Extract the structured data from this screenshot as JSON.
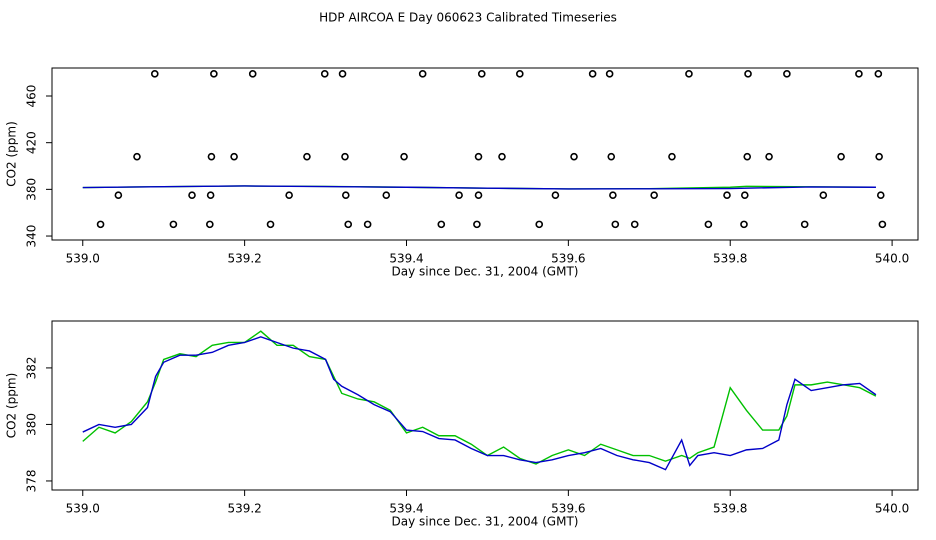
{
  "title": "HDP AIRCOA E  Day 060623  Calibrated Timeseries",
  "chart_data": [
    {
      "type": "line",
      "xlabel": "Day since Dec. 31, 2004 (GMT)",
      "ylabel": "CO2 (ppm)",
      "xlim": [
        538.962,
        540.032
      ],
      "ylim": [
        336.6,
        484
      ],
      "xticks": [
        {
          "value": 539,
          "label": "539.0"
        },
        539.2,
        539.4,
        539.6,
        539.8,
        {
          "value": 540,
          "label": "540.0"
        }
      ],
      "yticks": [
        340,
        380,
        420,
        460
      ],
      "series": [
        {
          "style": "points",
          "color": "#000000",
          "x": [
            539.089,
            539.162,
            539.21,
            539.299,
            539.321,
            539.42,
            539.493,
            539.54,
            539.63,
            539.651,
            539.749,
            539.822,
            539.87,
            539.959,
            539.983,
            539.067,
            539.159,
            539.187,
            539.277,
            539.324,
            539.397,
            539.489,
            539.518,
            539.607,
            539.653,
            539.728,
            539.821,
            539.848,
            539.937,
            539.984,
            539.044,
            539.135,
            539.158,
            539.255,
            539.325,
            539.375,
            539.465,
            539.489,
            539.584,
            539.655,
            539.706,
            539.796,
            539.818,
            539.915,
            539.986,
            539.022,
            539.112,
            539.157,
            539.232,
            539.328,
            539.352,
            539.443,
            539.487,
            539.564,
            539.658,
            539.682,
            539.773,
            539.817,
            539.892,
            539.988
          ],
          "values": [
            479,
            479,
            479,
            479,
            479,
            479,
            479,
            479,
            479,
            479,
            479,
            479,
            479,
            479,
            479,
            408,
            408,
            408,
            408,
            408,
            408,
            408,
            408,
            408,
            408,
            408,
            408,
            408,
            408,
            408,
            375,
            375,
            375,
            375,
            375,
            375,
            375,
            375,
            375,
            375,
            375,
            375,
            375,
            375,
            375,
            350,
            350,
            350,
            350,
            350,
            350,
            350,
            350,
            350,
            350,
            350,
            350,
            350,
            350,
            350
          ]
        },
        {
          "style": "line",
          "color": "#00c000",
          "x": [
            539.0,
            539.1,
            539.2,
            539.3,
            539.4,
            539.5,
            539.6,
            539.7,
            539.8,
            539.82,
            539.9,
            539.98
          ],
          "values": [
            381.5,
            382.3,
            382.9,
            382.5,
            381.8,
            381.0,
            380.4,
            380.6,
            381.8,
            382.6,
            382.2,
            381.9
          ]
        },
        {
          "style": "line",
          "color": "#0000c8",
          "x": [
            539.0,
            539.1,
            539.2,
            539.3,
            539.4,
            539.5,
            539.6,
            539.7,
            539.8,
            539.82,
            539.9,
            539.98
          ],
          "values": [
            381.5,
            382.3,
            382.9,
            382.4,
            381.8,
            381.0,
            380.4,
            380.5,
            380.7,
            381.0,
            382.1,
            381.8
          ]
        }
      ]
    },
    {
      "type": "line",
      "xlabel": "Day since Dec. 31, 2004 (GMT)",
      "ylabel": "CO2 (ppm)",
      "xlim": [
        538.962,
        540.032
      ],
      "ylim": [
        377.68,
        383.66
      ],
      "xticks": [
        {
          "value": 539,
          "label": "539.0"
        },
        539.2,
        539.4,
        539.6,
        539.8,
        {
          "value": 540,
          "label": "540.0"
        }
      ],
      "yticks": [
        378,
        380,
        382
      ],
      "series": [
        {
          "style": "line",
          "color": "#00c000",
          "x": [
            539.0,
            539.02,
            539.04,
            539.06,
            539.08,
            539.09,
            539.1,
            539.12,
            539.14,
            539.16,
            539.18,
            539.2,
            539.22,
            539.24,
            539.26,
            539.28,
            539.3,
            539.31,
            539.32,
            539.34,
            539.36,
            539.38,
            539.4,
            539.42,
            539.44,
            539.46,
            539.48,
            539.5,
            539.52,
            539.54,
            539.56,
            539.58,
            539.6,
            539.62,
            539.64,
            539.66,
            539.68,
            539.7,
            539.72,
            539.74,
            539.75,
            539.76,
            539.78,
            539.8,
            539.82,
            539.84,
            539.86,
            539.87,
            539.88,
            539.9,
            539.92,
            539.94,
            539.96,
            539.98
          ],
          "values": [
            379.4,
            379.9,
            379.7,
            380.1,
            380.8,
            381.5,
            382.3,
            382.5,
            382.4,
            382.8,
            382.9,
            382.9,
            383.3,
            382.8,
            382.8,
            382.4,
            382.3,
            381.7,
            381.1,
            380.9,
            380.8,
            380.5,
            379.7,
            379.9,
            379.6,
            379.6,
            379.3,
            378.9,
            379.2,
            378.8,
            378.6,
            378.9,
            379.1,
            378.9,
            379.3,
            379.1,
            378.9,
            378.9,
            378.7,
            378.9,
            378.8,
            379.0,
            379.2,
            381.3,
            380.5,
            379.8,
            379.8,
            380.3,
            381.4,
            381.4,
            381.5,
            381.4,
            381.3,
            381.0
          ]
        },
        {
          "style": "line",
          "color": "#0000c8",
          "x": [
            539.0,
            539.02,
            539.04,
            539.06,
            539.08,
            539.09,
            539.1,
            539.12,
            539.14,
            539.16,
            539.18,
            539.2,
            539.22,
            539.24,
            539.26,
            539.28,
            539.3,
            539.31,
            539.32,
            539.34,
            539.36,
            539.38,
            539.4,
            539.42,
            539.44,
            539.46,
            539.48,
            539.5,
            539.52,
            539.54,
            539.56,
            539.58,
            539.6,
            539.62,
            539.64,
            539.66,
            539.68,
            539.7,
            539.72,
            539.74,
            539.75,
            539.76,
            539.78,
            539.8,
            539.82,
            539.84,
            539.86,
            539.87,
            539.88,
            539.9,
            539.92,
            539.94,
            539.96,
            539.98
          ],
          "values": [
            379.73,
            380.0,
            379.9,
            380.0,
            380.6,
            381.7,
            382.2,
            382.45,
            382.45,
            382.55,
            382.8,
            382.9,
            383.1,
            382.9,
            382.7,
            382.6,
            382.3,
            381.6,
            381.35,
            381.05,
            380.7,
            380.45,
            379.8,
            379.75,
            379.5,
            379.45,
            379.15,
            378.9,
            378.9,
            378.75,
            378.65,
            378.75,
            378.9,
            379.0,
            379.15,
            378.9,
            378.75,
            378.65,
            378.4,
            379.45,
            378.55,
            378.9,
            379.0,
            378.9,
            379.1,
            379.15,
            379.45,
            380.7,
            381.6,
            381.2,
            381.3,
            381.4,
            381.45,
            381.05
          ]
        }
      ]
    }
  ]
}
